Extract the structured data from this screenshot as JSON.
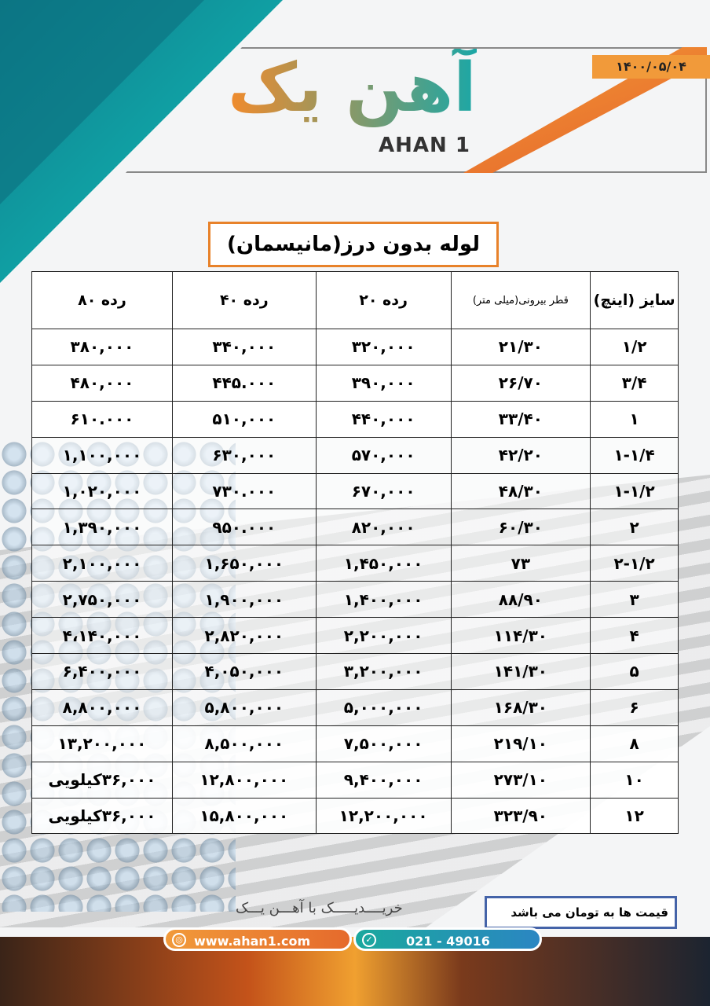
{
  "header": {
    "date": "۱۴۰۰/۰۵/۰۴",
    "logo_fa": "آهن یک",
    "logo_en": "AHAN 1"
  },
  "title": "لوله بدون درز(مانیسمان)",
  "table": {
    "headers": [
      "سایز (اینچ)",
      "قطر بیرونی(میلی متر)",
      "رده ۲۰",
      "رده ۴۰",
      "رده ۸۰"
    ],
    "rows": [
      [
        "۱/۲",
        "۲۱/۳۰",
        "۳۲۰,۰۰۰",
        "۳۴۰,۰۰۰",
        "۳۸۰,۰۰۰"
      ],
      [
        "۳/۴",
        "۲۶/۷۰",
        "۳۹۰,۰۰۰",
        "۴۴۵.۰۰۰",
        "۴۸۰,۰۰۰"
      ],
      [
        "۱",
        "۳۳/۴۰",
        "۴۴۰,۰۰۰",
        "۵۱۰,۰۰۰",
        "۶۱۰.۰۰۰"
      ],
      [
        "۱-۱/۴",
        "۴۲/۲۰",
        "۵۷۰,۰۰۰",
        "۶۳۰,۰۰۰",
        "۱,۱۰۰,۰۰۰"
      ],
      [
        "۱-۱/۲",
        "۴۸/۳۰",
        "۶۷۰,۰۰۰",
        "۷۳۰.۰۰۰",
        "۱,۰۲۰,۰۰۰"
      ],
      [
        "۲",
        "۶۰/۳۰",
        "۸۲۰,۰۰۰",
        "۹۵۰.۰۰۰",
        "۱,۳۹۰,۰۰۰"
      ],
      [
        "۲-۱/۲",
        "۷۳",
        "۱,۴۵۰,۰۰۰",
        "۱,۶۵۰,۰۰۰",
        "۲,۱۰۰,۰۰۰"
      ],
      [
        "۳",
        "۸۸/۹۰",
        "۱,۴۰۰,۰۰۰",
        "۱,۹۰۰,۰۰۰",
        "۲,۷۵۰,۰۰۰"
      ],
      [
        "۴",
        "۱۱۴/۳۰",
        "۲,۲۰۰,۰۰۰",
        "۲,۸۲۰,۰۰۰",
        "۴،۱۴۰,۰۰۰"
      ],
      [
        "۵",
        "۱۴۱/۳۰",
        "۳,۲۰۰,۰۰۰",
        "۴,۰۵۰,۰۰۰",
        "۶,۴۰۰,۰۰۰"
      ],
      [
        "۶",
        "۱۶۸/۳۰",
        "۵,۰۰۰,۰۰۰",
        "۵,۸۰۰,۰۰۰",
        "۸,۸۰۰,۰۰۰"
      ],
      [
        "۸",
        "۲۱۹/۱۰",
        "۷,۵۰۰,۰۰۰",
        "۸,۵۰۰,۰۰۰",
        "۱۳,۲۰۰,۰۰۰"
      ],
      [
        "۱۰",
        "۲۷۳/۱۰",
        "۹,۴۰۰,۰۰۰",
        "۱۲,۸۰۰,۰۰۰",
        "۳۶,۰۰۰کیلویی"
      ],
      [
        "۱۲",
        "۳۲۳/۹۰",
        "۱۲,۲۰۰,۰۰۰",
        "۱۵,۸۰۰,۰۰۰",
        "۳۶,۰۰۰کیلویی"
      ]
    ]
  },
  "footer": {
    "note": "قیمت ها به تومان می باشد",
    "slogan": "خریــــدیـــــک با آهـــن یـــک",
    "website": "www.ahan1.com",
    "phone": "021 - 49016",
    "web_icon": "globe-icon",
    "phone_icon": "check-phone-icon"
  },
  "colors": {
    "orange": "#f19a3a",
    "teal": "#1aa89e",
    "blue_border": "#4463a8"
  }
}
